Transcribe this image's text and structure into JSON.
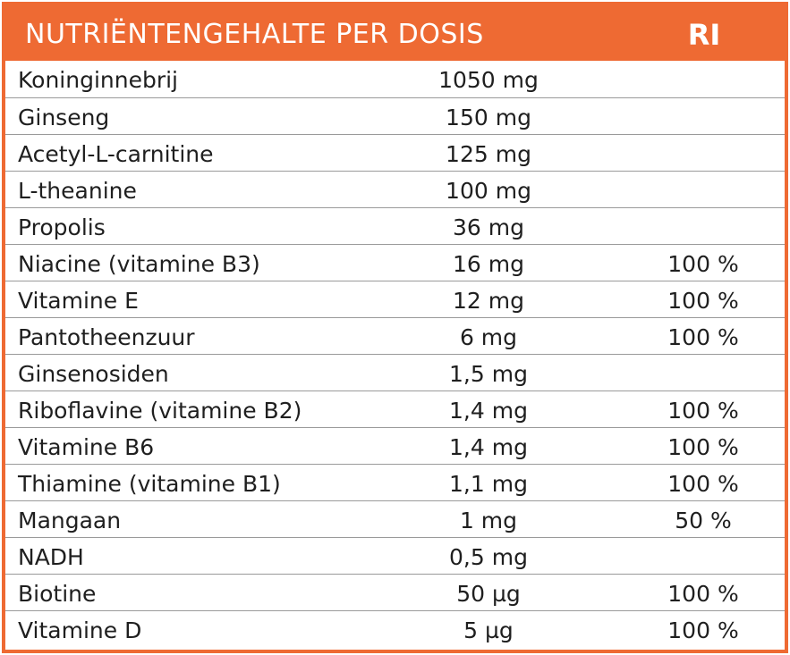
{
  "header": {
    "title": "NUTRIËNTENGEHALTE PER DOSIS",
    "ri": "RI"
  },
  "colors": {
    "accent": "#ee6a33",
    "divider": "#9a9a9a",
    "text": "#1f1f1f"
  },
  "rows": [
    {
      "name": "Koninginnebrij",
      "amount": "1050 mg",
      "ri": ""
    },
    {
      "name": "Ginseng",
      "amount": "150 mg",
      "ri": ""
    },
    {
      "name": "Acetyl-L-carnitine",
      "amount": "125 mg",
      "ri": ""
    },
    {
      "name": "L-theanine",
      "amount": "100 mg",
      "ri": ""
    },
    {
      "name": "Propolis",
      "amount": "36 mg",
      "ri": ""
    },
    {
      "name": "Niacine (vitamine B3)",
      "amount": "16 mg",
      "ri": "100 %"
    },
    {
      "name": "Vitamine E",
      "amount": "12 mg",
      "ri": "100 %"
    },
    {
      "name": "Pantotheenzuur",
      "amount": "6 mg",
      "ri": "100 %"
    },
    {
      "name": "Ginsenosiden",
      "amount": "1,5 mg",
      "ri": ""
    },
    {
      "name": "Riboflavine (vitamine B2)",
      "amount": "1,4 mg",
      "ri": "100 %"
    },
    {
      "name": "Vitamine B6",
      "amount": "1,4 mg",
      "ri": "100 %"
    },
    {
      "name": "Thiamine (vitamine B1)",
      "amount": "1,1 mg",
      "ri": "100 %"
    },
    {
      "name": "Mangaan",
      "amount": "1 mg",
      "ri": "50 %"
    },
    {
      "name": "NADH",
      "amount": "0,5 mg",
      "ri": ""
    },
    {
      "name": "Biotine",
      "amount": "50 µg",
      "ri": "100 %"
    },
    {
      "name": "Vitamine D",
      "amount": "5 µg",
      "ri": "100 %"
    }
  ]
}
